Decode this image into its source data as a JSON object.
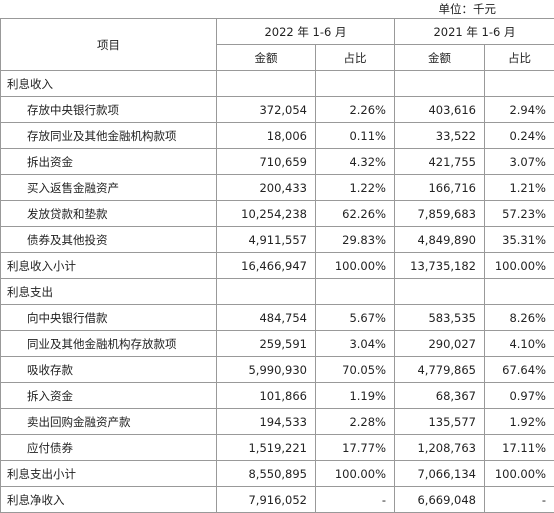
{
  "unit": "单位：千元",
  "header": {
    "item": "项目",
    "periods": [
      "2022 年 1-6 月",
      "2021 年 1-6 月"
    ],
    "columns": [
      "金额",
      "占比",
      "金额",
      "占比"
    ]
  },
  "table": {
    "rows": [
      [
        "利息收入"
      ],
      [
        "存放中央银行款项",
        "372,054",
        "2.26%",
        "403,616",
        "2.94%"
      ],
      [
        "存放同业及其他金融机构款项",
        "18,006",
        "0.11%",
        "33,522",
        "0.24%"
      ],
      [
        "拆出资金",
        "710,659",
        "4.32%",
        "421,755",
        "3.07%"
      ],
      [
        "买入返售金融资产",
        "200,433",
        "1.22%",
        "166,716",
        "1.21%"
      ],
      [
        "发放贷款和垫款",
        "10,254,238",
        "62.26%",
        "7,859,683",
        "57.23%"
      ],
      [
        "债券及其他投资",
        "4,911,557",
        "29.83%",
        "4,849,890",
        "35.31%"
      ],
      [
        "利息收入小计",
        "16,466,947",
        "100.00%",
        "13,735,182",
        "100.00%"
      ],
      [
        "利息支出"
      ],
      [
        "向中央银行借款",
        "484,754",
        "5.67%",
        "583,535",
        "8.26%"
      ],
      [
        "同业及其他金融机构存放款项",
        "259,591",
        "3.04%",
        "290,027",
        "4.10%"
      ],
      [
        "吸收存款",
        "5,990,930",
        "70.05%",
        "4,779,865",
        "67.64%"
      ],
      [
        "拆入资金",
        "101,866",
        "1.19%",
        "68,367",
        "0.97%"
      ],
      [
        "卖出回购金融资产款",
        "194,533",
        "2.28%",
        "135,577",
        "1.92%"
      ],
      [
        "应付债券",
        "1,519,221",
        "17.77%",
        "1,208,763",
        "17.11%"
      ],
      [
        "利息支出小计",
        "8,550,895",
        "100.00%",
        "7,066,134",
        "100.00%"
      ],
      [
        "利息净收入",
        "7,916,052",
        "-",
        "6,669,048",
        "-"
      ]
    ]
  }
}
